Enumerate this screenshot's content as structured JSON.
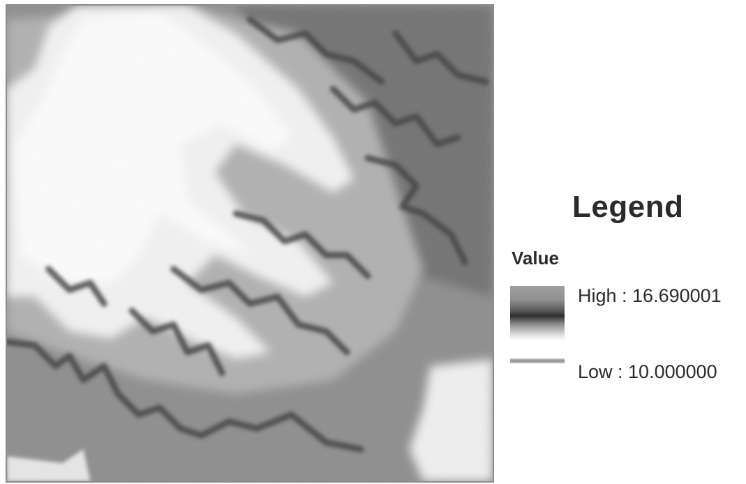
{
  "map": {
    "description_colors": {
      "high": "#2e2e2e",
      "mid": "#8a8a8a",
      "low": "#ffffff"
    }
  },
  "legend": {
    "title": "Legend",
    "subtitle": "Value",
    "high_label": "High : 16.690001",
    "low_label": "Low : 10.000000"
  }
}
